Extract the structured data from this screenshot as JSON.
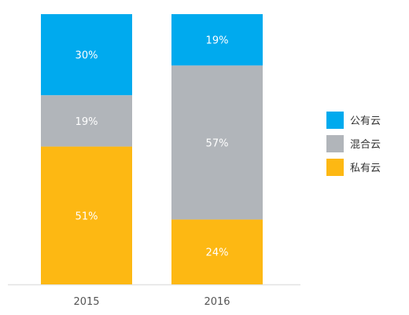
{
  "chart_data": {
    "type": "bar",
    "stacked": true,
    "orientation": "vertical",
    "categories": [
      "2015",
      "2016"
    ],
    "value_format": "percent",
    "ylim": [
      0,
      100
    ],
    "grid": false,
    "legend_placement": "right",
    "series": [
      {
        "name": "公有云",
        "color": "#00AAEE",
        "values": [
          30,
          19
        ]
      },
      {
        "name": "混合云",
        "color": "#B1B5BA",
        "values": [
          19,
          57
        ]
      },
      {
        "name": "私有云",
        "color": "#FDB813",
        "values": [
          51,
          24
        ]
      }
    ],
    "title": "",
    "xlabel": "",
    "ylabel": ""
  }
}
